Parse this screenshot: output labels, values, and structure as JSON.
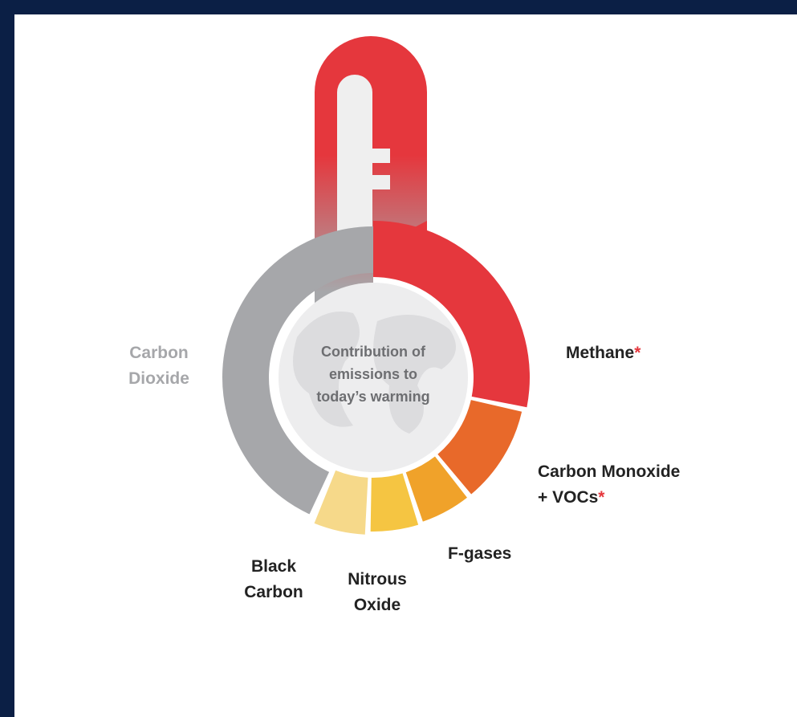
{
  "center_text": [
    "Contribution of",
    "emissions to",
    "today’s warming"
  ],
  "labels": {
    "carbon_dioxide": [
      "Carbon",
      "Dioxide"
    ],
    "methane": {
      "text": "Methane",
      "mark": "*"
    },
    "carbon_monoxide": {
      "lines": [
        "Carbon Monoxide",
        "+ VOCs"
      ],
      "mark": "*"
    },
    "f_gases": [
      "F-gases"
    ],
    "nitrous_oxide": [
      "Nitrous",
      "Oxide"
    ],
    "black_carbon": [
      "Black",
      "Carbon"
    ]
  }
}
